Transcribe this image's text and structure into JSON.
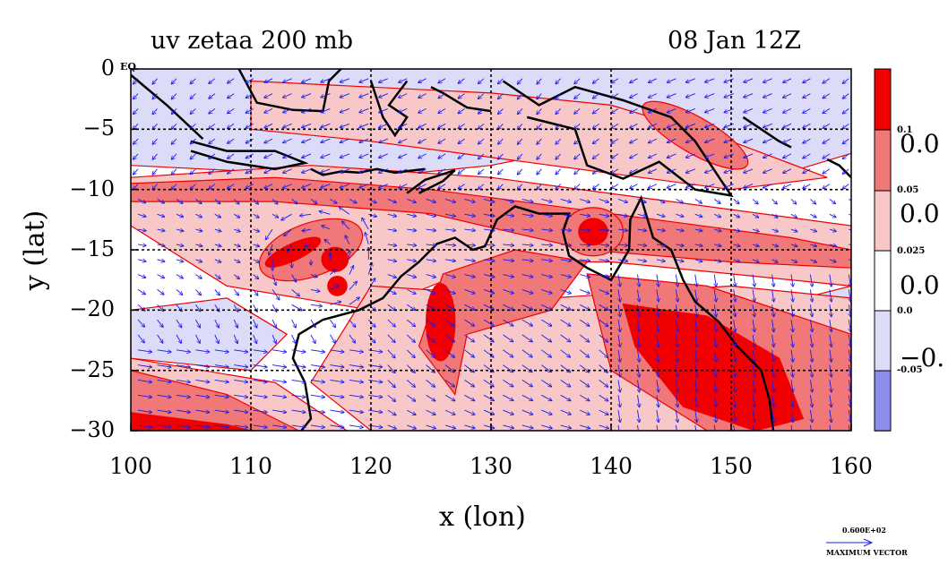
{
  "title_left": "uv zetaa 200 mb",
  "title_right": "08 Jan 12Z",
  "map_corner_label": "EQ",
  "y_axis": {
    "label": "y (lat)",
    "ticks": [
      "0",
      "−5",
      "−10",
      "−15",
      "−20",
      "−25",
      "−30"
    ],
    "values": [
      0,
      -5,
      -10,
      -15,
      -20,
      -25,
      -30
    ]
  },
  "x_axis": {
    "label": "x (lon)",
    "ticks": [
      "100",
      "110",
      "120",
      "130",
      "140",
      "150",
      "160"
    ],
    "values": [
      100,
      110,
      120,
      130,
      140,
      150,
      160
    ]
  },
  "colorbar": {
    "small_labels": [
      "0.1",
      "0.05",
      "0.025",
      "0.0",
      "-0.05"
    ],
    "large_labels": [
      "0.0",
      "0.0",
      "0.0",
      "−0."
    ],
    "colors": [
      "#f00000",
      "#f07878",
      "#f8c8c8",
      "#ffffff",
      "#dcdcf8",
      "#8c8cec"
    ]
  },
  "max_vector": {
    "value_label": "0.600E+02",
    "caption": "MAXIMUM VECTOR"
  },
  "colors": {
    "vector": "#1a1aee",
    "contour": "#e00000",
    "coast": "#000000",
    "grid": "#000000"
  }
}
